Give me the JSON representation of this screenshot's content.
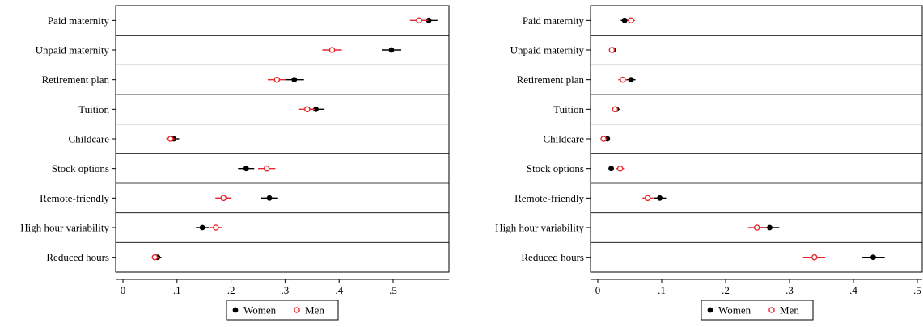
{
  "chart_data": [
    {
      "type": "scatter",
      "title": "",
      "xlabel": "",
      "ylabel": "",
      "xlim": [
        0,
        0.6
      ],
      "xticks": [
        0,
        0.1,
        0.2,
        0.3,
        0.4,
        0.5
      ],
      "xtick_labels": [
        "0",
        ".1",
        ".2",
        ".3",
        ".4",
        ".5"
      ],
      "categories": [
        "Paid maternity",
        "Unpaid maternity",
        "Retirement plan",
        "Tuition",
        "Childcare",
        "Stock options",
        "Remote-friendly",
        "High hour variability",
        "Reduced hours"
      ],
      "series": [
        {
          "name": "Women",
          "color": "#000000",
          "marker": "filled-circle",
          "values": [
            0.566,
            0.497,
            0.317,
            0.357,
            0.094,
            0.228,
            0.271,
            0.147,
            0.064
          ],
          "ci_low": [
            0.551,
            0.479,
            0.299,
            0.341,
            0.085,
            0.213,
            0.256,
            0.135,
            0.058
          ],
          "ci_high": [
            0.582,
            0.515,
            0.335,
            0.373,
            0.104,
            0.243,
            0.287,
            0.159,
            0.071
          ]
        },
        {
          "name": "Men",
          "color": "#e8282d",
          "marker": "hollow-circle",
          "values": [
            0.548,
            0.387,
            0.285,
            0.341,
            0.088,
            0.266,
            0.186,
            0.172,
            0.059
          ],
          "ci_low": [
            0.531,
            0.369,
            0.268,
            0.326,
            0.08,
            0.25,
            0.171,
            0.16,
            0.053
          ],
          "ci_high": [
            0.565,
            0.405,
            0.302,
            0.356,
            0.096,
            0.282,
            0.201,
            0.184,
            0.066
          ]
        }
      ],
      "grid": false,
      "row_dividers": true,
      "legend": {
        "position": "bottom",
        "entries": [
          "Women",
          "Men"
        ]
      }
    },
    {
      "type": "scatter",
      "title": "",
      "xlabel": "",
      "ylabel": "",
      "xlim": [
        0,
        0.5
      ],
      "xticks": [
        0,
        0.1,
        0.2,
        0.3,
        0.4,
        0.5
      ],
      "xtick_labels": [
        "0",
        ".1",
        ".2",
        ".3",
        ".4",
        ".5"
      ],
      "categories": [
        "Paid maternity",
        "Unpaid maternity",
        "Retirement plan",
        "Tuition",
        "Childcare",
        "Stock options",
        "Remote-friendly",
        "High hour variability",
        "Reduced hours"
      ],
      "series": [
        {
          "name": "Women",
          "color": "#000000",
          "marker": "filled-circle",
          "values": [
            0.042,
            0.024,
            0.052,
            0.029,
            0.015,
            0.021,
            0.097,
            0.269,
            0.431
          ],
          "ci_low": [
            0.036,
            0.02,
            0.045,
            0.025,
            0.012,
            0.017,
            0.088,
            0.255,
            0.414
          ],
          "ci_high": [
            0.049,
            0.028,
            0.059,
            0.034,
            0.018,
            0.025,
            0.107,
            0.284,
            0.449
          ]
        },
        {
          "name": "Men",
          "color": "#e8282d",
          "marker": "hollow-circle",
          "values": [
            0.052,
            0.022,
            0.039,
            0.027,
            0.009,
            0.035,
            0.078,
            0.249,
            0.339
          ],
          "ci_low": [
            0.046,
            0.018,
            0.032,
            0.023,
            0.006,
            0.029,
            0.07,
            0.235,
            0.321
          ],
          "ci_high": [
            0.058,
            0.026,
            0.046,
            0.031,
            0.012,
            0.041,
            0.087,
            0.264,
            0.356
          ]
        }
      ],
      "grid": false,
      "row_dividers": true,
      "legend": {
        "position": "bottom",
        "entries": [
          "Women",
          "Men"
        ]
      }
    }
  ]
}
